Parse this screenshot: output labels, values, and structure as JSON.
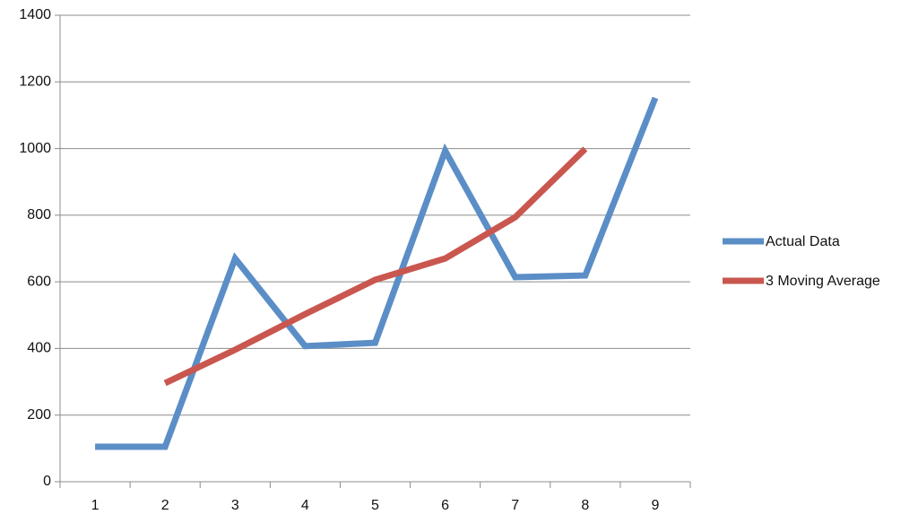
{
  "chart_data": {
    "type": "line",
    "categories": [
      "1",
      "2",
      "3",
      "4",
      "5",
      "6",
      "7",
      "8",
      "9"
    ],
    "series": [
      {
        "name": "Actual Data",
        "color": "#5b8ec6",
        "values": [
          105,
          105,
          670,
          407,
          417,
          993,
          614,
          619,
          1152
        ]
      },
      {
        "name": "3 Moving Average",
        "color": "#c9574f",
        "values": [
          null,
          296,
          396,
          503,
          606,
          670,
          794,
          999,
          null
        ]
      }
    ],
    "ylim": [
      0,
      1400
    ],
    "yticks": [
      0,
      200,
      400,
      600,
      800,
      1000,
      1200,
      1400
    ],
    "grid": true,
    "legend": "right"
  }
}
